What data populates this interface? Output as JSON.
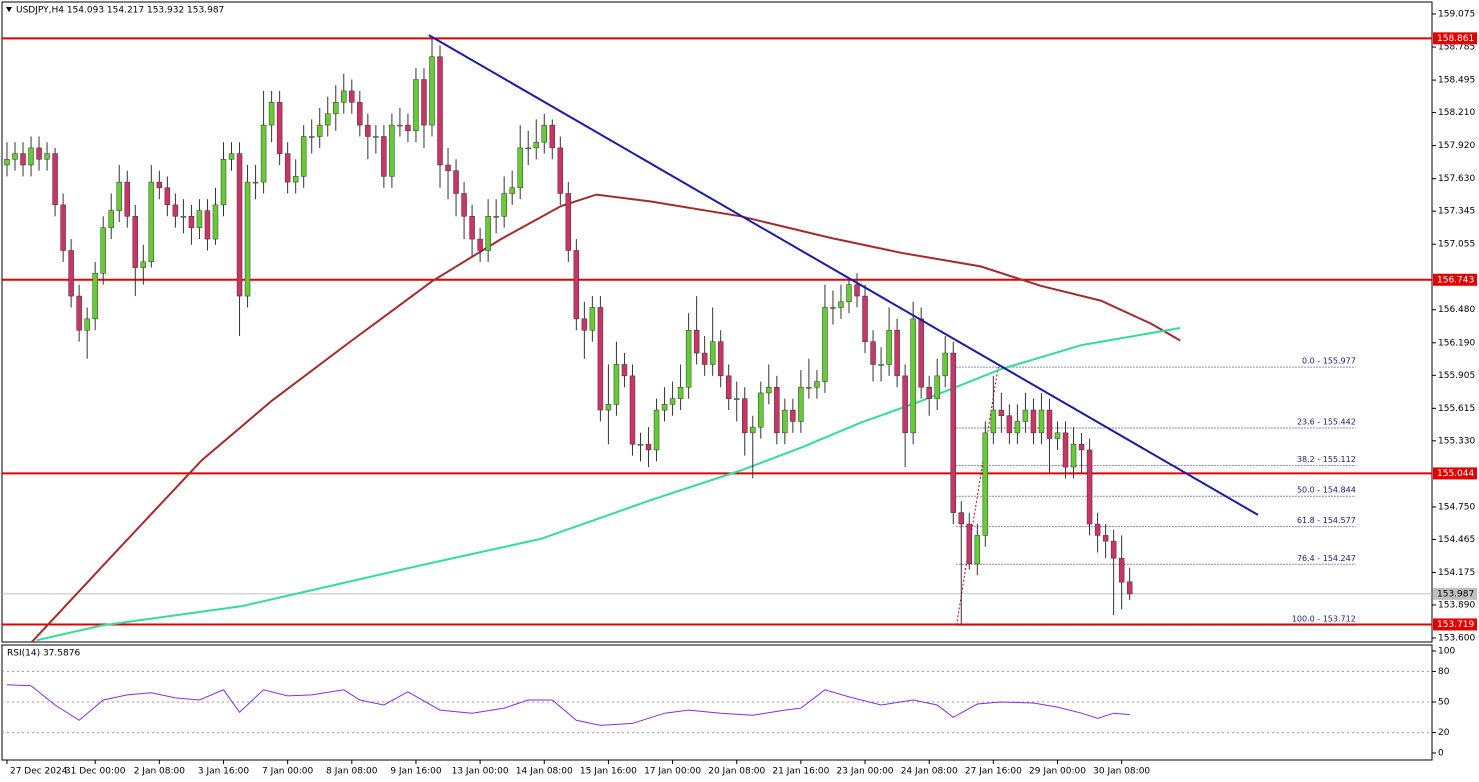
{
  "chart_data": [
    {
      "type": "candlestick",
      "title": "USDJPY,H4  154.093 154.217 153.932 153.987",
      "xlim": [
        -0.62,
        177.7
      ],
      "ylim": [
        153.565,
        159.18
      ],
      "yticks": [
        159.075,
        158.785,
        158.495,
        {
          "value": 158.21,
          "label": "158.210"
        },
        {
          "value": 157.92,
          "label": "157.920"
        },
        {
          "value": 157.63,
          "label": "157.630"
        },
        157.345,
        157.055,
        {
          "value": 156.48,
          "label": "156.480"
        },
        {
          "value": 156.19,
          "label": "156.190"
        },
        155.905,
        155.615,
        {
          "value": 155.33,
          "label": "155.330"
        },
        {
          "value": 154.75,
          "label": "154.750"
        },
        154.465,
        154.175,
        {
          "value": 153.89,
          "label": "153.890"
        },
        {
          "value": 153.6,
          "label": "153.600"
        }
      ],
      "up_color": "#66cc33",
      "down_color": "#cc3366",
      "candles": [
        [
          157.75,
          157.95,
          157.65,
          157.8
        ],
        [
          157.8,
          157.95,
          157.7,
          157.85
        ],
        [
          157.85,
          157.95,
          157.65,
          157.75
        ],
        [
          157.75,
          158.0,
          157.65,
          157.9
        ],
        [
          157.9,
          158.0,
          157.7,
          157.8
        ],
        [
          157.8,
          157.95,
          157.7,
          157.85
        ],
        [
          157.85,
          157.9,
          157.3,
          157.4
        ],
        [
          157.4,
          157.5,
          156.9,
          157.0
        ],
        [
          157.0,
          157.1,
          156.5,
          156.6
        ],
        [
          156.6,
          156.7,
          156.2,
          156.3
        ],
        [
          156.3,
          156.5,
          156.05,
          156.4
        ],
        [
          156.4,
          156.9,
          156.3,
          156.8
        ],
        [
          156.8,
          157.3,
          156.7,
          157.2
        ],
        [
          157.2,
          157.5,
          157.1,
          157.35
        ],
        [
          157.35,
          157.75,
          157.25,
          157.6
        ],
        [
          157.6,
          157.7,
          157.2,
          157.3
        ],
        [
          157.3,
          157.4,
          156.6,
          156.85
        ],
        [
          156.85,
          157.05,
          156.7,
          156.9
        ],
        [
          156.9,
          157.75,
          156.85,
          157.6
        ],
        [
          157.6,
          157.7,
          157.45,
          157.55
        ],
        [
          157.55,
          157.65,
          157.3,
          157.4
        ],
        [
          157.4,
          157.5,
          157.2,
          157.3
        ],
        [
          157.3,
          157.45,
          157.15,
          157.3
        ],
        [
          157.3,
          157.4,
          157.05,
          157.2
        ],
        [
          157.2,
          157.45,
          157.1,
          157.35
        ],
        [
          157.35,
          157.45,
          157.0,
          157.1
        ],
        [
          157.1,
          157.55,
          157.05,
          157.4
        ],
        [
          157.4,
          157.95,
          157.3,
          157.8
        ],
        [
          157.8,
          157.95,
          157.7,
          157.85
        ],
        [
          157.85,
          157.95,
          156.25,
          156.6
        ],
        [
          156.6,
          157.75,
          156.5,
          157.6
        ],
        [
          157.6,
          157.75,
          157.45,
          157.6
        ],
        [
          157.6,
          158.4,
          157.5,
          158.1
        ],
        [
          158.1,
          158.4,
          157.95,
          158.3
        ],
        [
          158.3,
          158.4,
          157.75,
          157.85
        ],
        [
          157.85,
          157.95,
          157.5,
          157.6
        ],
        [
          157.6,
          157.8,
          157.5,
          157.65
        ],
        [
          157.65,
          158.1,
          157.55,
          158.0
        ],
        [
          158.0,
          158.15,
          157.85,
          158.0
        ],
        [
          158.0,
          158.25,
          157.9,
          158.1
        ],
        [
          158.1,
          158.35,
          158.0,
          158.2
        ],
        [
          158.2,
          158.45,
          158.05,
          158.3
        ],
        [
          158.3,
          158.55,
          158.2,
          158.4
        ],
        [
          158.4,
          158.5,
          158.2,
          158.3
        ],
        [
          158.3,
          158.4,
          158.0,
          158.1
        ],
        [
          158.1,
          158.2,
          157.8,
          158.0
        ],
        [
          158.0,
          158.1,
          157.85,
          158.0
        ],
        [
          158.0,
          158.1,
          157.55,
          157.65
        ],
        [
          157.65,
          158.2,
          157.55,
          158.1
        ],
        [
          158.1,
          158.25,
          158.0,
          158.1
        ],
        [
          158.1,
          158.2,
          157.95,
          158.05
        ],
        [
          158.05,
          158.6,
          157.95,
          158.5
        ],
        [
          158.5,
          158.6,
          157.9,
          158.1
        ],
        [
          158.1,
          158.86,
          158.0,
          158.7
        ],
        [
          158.7,
          158.8,
          157.55,
          157.75
        ],
        [
          157.75,
          157.9,
          157.45,
          157.7
        ],
        [
          157.7,
          157.8,
          157.3,
          157.5
        ],
        [
          157.5,
          157.6,
          157.1,
          157.3
        ],
        [
          157.3,
          157.4,
          156.95,
          157.1
        ],
        [
          157.1,
          157.2,
          156.9,
          157.0
        ],
        [
          157.0,
          157.45,
          156.9,
          157.3
        ],
        [
          157.3,
          157.45,
          157.15,
          157.3
        ],
        [
          157.3,
          157.65,
          157.2,
          157.5
        ],
        [
          157.5,
          157.7,
          157.4,
          157.55
        ],
        [
          157.55,
          158.1,
          157.45,
          157.9
        ],
        [
          157.9,
          158.05,
          157.75,
          157.9
        ],
        [
          157.9,
          158.15,
          157.8,
          157.95
        ],
        [
          157.95,
          158.2,
          157.85,
          158.1
        ],
        [
          158.1,
          158.15,
          157.8,
          157.9
        ],
        [
          157.9,
          158.0,
          157.4,
          157.5
        ],
        [
          157.5,
          157.6,
          156.9,
          157.0
        ],
        [
          157.0,
          157.1,
          156.3,
          156.4
        ],
        [
          156.4,
          156.55,
          156.05,
          156.3
        ],
        [
          156.3,
          156.6,
          156.2,
          156.5
        ],
        [
          156.5,
          156.6,
          155.5,
          155.6
        ],
        [
          155.6,
          156.0,
          155.3,
          155.65
        ],
        [
          155.65,
          156.2,
          155.55,
          156.0
        ],
        [
          156.0,
          156.1,
          155.8,
          155.9
        ],
        [
          155.9,
          156.0,
          155.2,
          155.3
        ],
        [
          155.3,
          155.4,
          155.15,
          155.3
        ],
        [
          155.3,
          155.45,
          155.1,
          155.25
        ],
        [
          155.25,
          155.7,
          155.15,
          155.6
        ],
        [
          155.6,
          155.8,
          155.5,
          155.65
        ],
        [
          155.65,
          155.85,
          155.55,
          155.7
        ],
        [
          155.7,
          156.0,
          155.6,
          155.8
        ],
        [
          155.8,
          156.45,
          155.7,
          156.3
        ],
        [
          156.3,
          156.6,
          156.0,
          156.1
        ],
        [
          156.1,
          156.25,
          155.9,
          156.0
        ],
        [
          156.0,
          156.5,
          155.9,
          156.2
        ],
        [
          156.2,
          156.3,
          155.8,
          155.9
        ],
        [
          155.9,
          156.0,
          155.6,
          155.7
        ],
        [
          155.7,
          155.85,
          155.5,
          155.7
        ],
        [
          155.7,
          155.8,
          155.2,
          155.4
        ],
        [
          155.4,
          155.55,
          155.0,
          155.45
        ],
        [
          155.45,
          155.85,
          155.35,
          155.75
        ],
        [
          155.75,
          156.0,
          155.65,
          155.8
        ],
        [
          155.8,
          155.9,
          155.3,
          155.4
        ],
        [
          155.4,
          155.7,
          155.3,
          155.6
        ],
        [
          155.6,
          155.7,
          155.4,
          155.5
        ],
        [
          155.5,
          155.95,
          155.4,
          155.8
        ],
        [
          155.8,
          156.05,
          155.7,
          155.8
        ],
        [
          155.8,
          155.95,
          155.7,
          155.85
        ],
        [
          155.85,
          156.7,
          155.75,
          156.5
        ],
        [
          156.5,
          156.65,
          156.35,
          156.5
        ],
        [
          156.5,
          156.7,
          156.4,
          156.55
        ],
        [
          156.55,
          156.76,
          156.45,
          156.7
        ],
        [
          156.7,
          156.8,
          156.5,
          156.6
        ],
        [
          156.6,
          156.7,
          156.1,
          156.2
        ],
        [
          156.2,
          156.3,
          155.85,
          156.0
        ],
        [
          156.0,
          156.15,
          155.85,
          156.0
        ],
        [
          156.0,
          156.5,
          155.9,
          156.3
        ],
        [
          156.3,
          156.4,
          155.8,
          155.9
        ],
        [
          155.9,
          156.0,
          155.1,
          155.4
        ],
        [
          155.4,
          156.55,
          155.3,
          156.4
        ],
        [
          156.4,
          156.5,
          155.7,
          155.8
        ],
        [
          155.8,
          155.9,
          155.55,
          155.7
        ],
        [
          155.7,
          156.05,
          155.6,
          155.9
        ],
        [
          155.9,
          156.25,
          155.8,
          156.1
        ],
        [
          156.1,
          156.2,
          154.6,
          154.7
        ],
        [
          154.7,
          154.8,
          153.71,
          154.6
        ],
        [
          154.6,
          154.7,
          154.2,
          154.25
        ],
        [
          154.25,
          154.6,
          154.15,
          154.5
        ],
        [
          154.5,
          155.5,
          154.4,
          155.4
        ],
        [
          155.4,
          155.9,
          155.3,
          155.6
        ],
        [
          155.6,
          155.75,
          155.4,
          155.55
        ],
        [
          155.55,
          155.65,
          155.3,
          155.4
        ],
        [
          155.4,
          155.65,
          155.3,
          155.5
        ],
        [
          155.5,
          155.75,
          155.4,
          155.6
        ],
        [
          155.6,
          155.7,
          155.3,
          155.4
        ],
        [
          155.4,
          155.75,
          155.3,
          155.6
        ],
        [
          155.6,
          155.7,
          155.05,
          155.35
        ],
        [
          155.35,
          155.5,
          155.25,
          155.4
        ],
        [
          155.4,
          155.5,
          155.0,
          155.1
        ],
        [
          155.1,
          155.45,
          155.0,
          155.3
        ],
        [
          155.3,
          155.4,
          155.05,
          155.25
        ],
        [
          155.25,
          155.35,
          154.5,
          154.6
        ],
        [
          154.6,
          154.7,
          154.35,
          154.5
        ],
        [
          154.5,
          154.6,
          154.3,
          154.45
        ],
        [
          154.45,
          154.55,
          153.8,
          154.3
        ],
        [
          154.3,
          154.5,
          153.85,
          154.09
        ],
        [
          154.093,
          154.217,
          153.932,
          153.987
        ]
      ],
      "lines": [
        {
          "color": "#a52a2a",
          "x": [
            3.1,
            14.3,
            24.3,
            33,
            43,
            53,
            61.6,
            69.1,
            73.5,
            80.3,
            91.5,
            102.7,
            111.5,
            121.4,
            128.9,
            136.4,
            142.6,
            146.3
          ],
          "values": [
            153.565,
            154.41,
            155.16,
            155.68,
            156.21,
            156.73,
            157.1,
            157.39,
            157.49,
            157.43,
            157.3,
            157.11,
            156.98,
            156.86,
            156.69,
            156.56,
            156.36,
            156.21
          ]
        },
        {
          "color": "#33dd99",
          "x": [
            3.7,
            11.8,
            29.3,
            40.5,
            51.7,
            66.6,
            80.3,
            91.5,
            99,
            106.5,
            114,
            124,
            134,
            146.3
          ],
          "values": [
            153.58,
            153.71,
            153.88,
            154.06,
            154.24,
            154.47,
            154.81,
            155.07,
            155.27,
            155.49,
            155.68,
            155.96,
            156.17,
            156.32
          ]
        }
      ],
      "trendline": {
        "color": "#1a1aa8",
        "x": [
          52.6,
          156
        ],
        "values": [
          158.89,
          154.68
        ]
      },
      "levels": {
        "color": "#e00000",
        "values": [
          158.861,
          156.743,
          155.044,
          153.719
        ]
      },
      "last_price": {
        "value": 153.987,
        "color": "#c0c0c0"
      },
      "fibonacci": {
        "color": "#1a1a70",
        "anchor_color": "#cc0000",
        "x": [
          118.4,
          168.2
        ],
        "anchor": {
          "x": [
            118.4,
            123.6
          ],
          "values": [
            153.712,
            155.977
          ]
        },
        "levels": [
          {
            "value": 155.977,
            "label": "0.0 - 155.977"
          },
          {
            "value": 155.442,
            "label": "23.6 - 155.442"
          },
          {
            "value": 155.112,
            "label": "38.2 - 155.112"
          },
          {
            "value": 154.844,
            "label": "50.0 - 154.844"
          },
          {
            "value": 154.577,
            "label": "61.8 - 154.577"
          },
          {
            "value": 154.247,
            "label": "76.4 - 154.247"
          },
          {
            "value": 153.712,
            "label": "100.0 - 153.712"
          }
        ]
      }
    },
    {
      "type": "line",
      "title": "RSI(14) 37.5876",
      "color": "#8a2be2",
      "xlim": [
        -0.62,
        177.7
      ],
      "ylim": [
        -6.9,
        105.9
      ],
      "yticks": [
        100,
        80,
        50,
        20,
        0
      ],
      "levels": [
        80,
        50,
        20
      ],
      "x": [
        0,
        3,
        6,
        9,
        12,
        15,
        18,
        21,
        24,
        27,
        29,
        32,
        35,
        38,
        42,
        44,
        47,
        50,
        54,
        58,
        62,
        65,
        68,
        71,
        74,
        78,
        82,
        85,
        89,
        93,
        97,
        99,
        102,
        105,
        109,
        113,
        116,
        118,
        121,
        124,
        128,
        131,
        134,
        136,
        138,
        140
      ],
      "values": [
        67,
        66,
        47,
        32,
        52,
        57,
        59,
        54,
        52,
        62,
        40,
        62,
        56,
        57,
        62,
        52,
        47,
        60,
        42,
        39,
        44,
        52,
        52,
        32,
        27,
        29,
        39,
        42,
        39,
        37,
        42,
        44,
        62,
        55,
        47,
        52,
        47,
        35,
        48,
        50,
        49,
        45,
        39,
        34,
        39,
        37.59
      ],
      "xticks": [
        {
          "value": 0,
          "label": "27 Dec 2024"
        },
        {
          "value": 11,
          "label": "31 Dec 00:00"
        },
        {
          "value": 19,
          "label": "2 Jan 08:00"
        },
        {
          "value": 27,
          "label": "3 Jan 16:00"
        },
        {
          "value": 35,
          "label": "7 Jan 00:00"
        },
        {
          "value": 43,
          "label": "8 Jan 08:00"
        },
        {
          "value": 51,
          "label": "9 Jan 16:00"
        },
        {
          "value": 59,
          "label": "13 Jan 00:00"
        },
        {
          "value": 67,
          "label": "14 Jan 08:00"
        },
        {
          "value": 75,
          "label": "15 Jan 16:00"
        },
        {
          "value": 83,
          "label": "17 Jan 00:00"
        },
        {
          "value": 91,
          "label": "20 Jan 08:00"
        },
        {
          "value": 99,
          "label": "21 Jan 16:00"
        },
        {
          "value": 107,
          "label": "23 Jan 00:00"
        },
        {
          "value": 115,
          "label": "24 Jan 08:00"
        },
        {
          "value": 123,
          "label": "27 Jan 16:00"
        },
        {
          "value": 131,
          "label": "29 Jan 00:00"
        },
        {
          "value": 139,
          "label": "30 Jan 08:00"
        }
      ]
    }
  ]
}
